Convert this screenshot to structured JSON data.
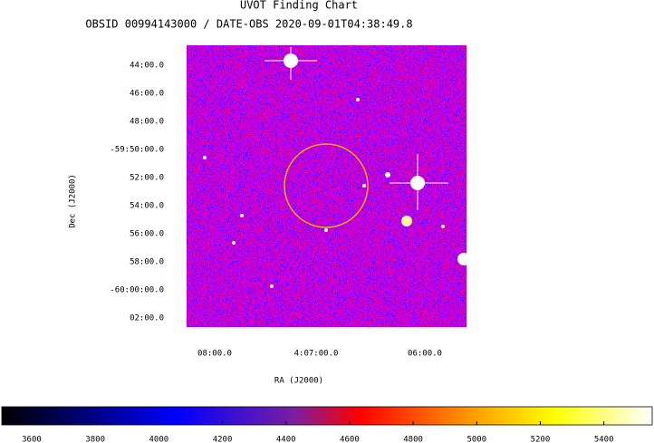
{
  "header": {
    "title": "UVOT Finding Chart",
    "subtitle": "OBSID 00994143000 / DATE-OBS 2020-09-01T04:38:49.8"
  },
  "axes": {
    "x_label": "RA (J2000)",
    "y_label": "Dec (J2000)",
    "x_ticks": [
      "08:00.0",
      "4:07:00.0",
      "06:00.0"
    ],
    "y_ticks": [
      "44:00.0",
      "46:00.0",
      "48:00.0",
      "-59:50:00.0",
      "52:00.0",
      "54:00.0",
      "56:00.0",
      "58:00.0",
      "-60:00:00.0",
      "02:00.0"
    ]
  },
  "colorbar": {
    "range": [
      3506,
      5552
    ],
    "ticks": [
      3600,
      3800,
      4000,
      4200,
      4400,
      4600,
      4800,
      5000,
      5200,
      5400
    ]
  }
}
